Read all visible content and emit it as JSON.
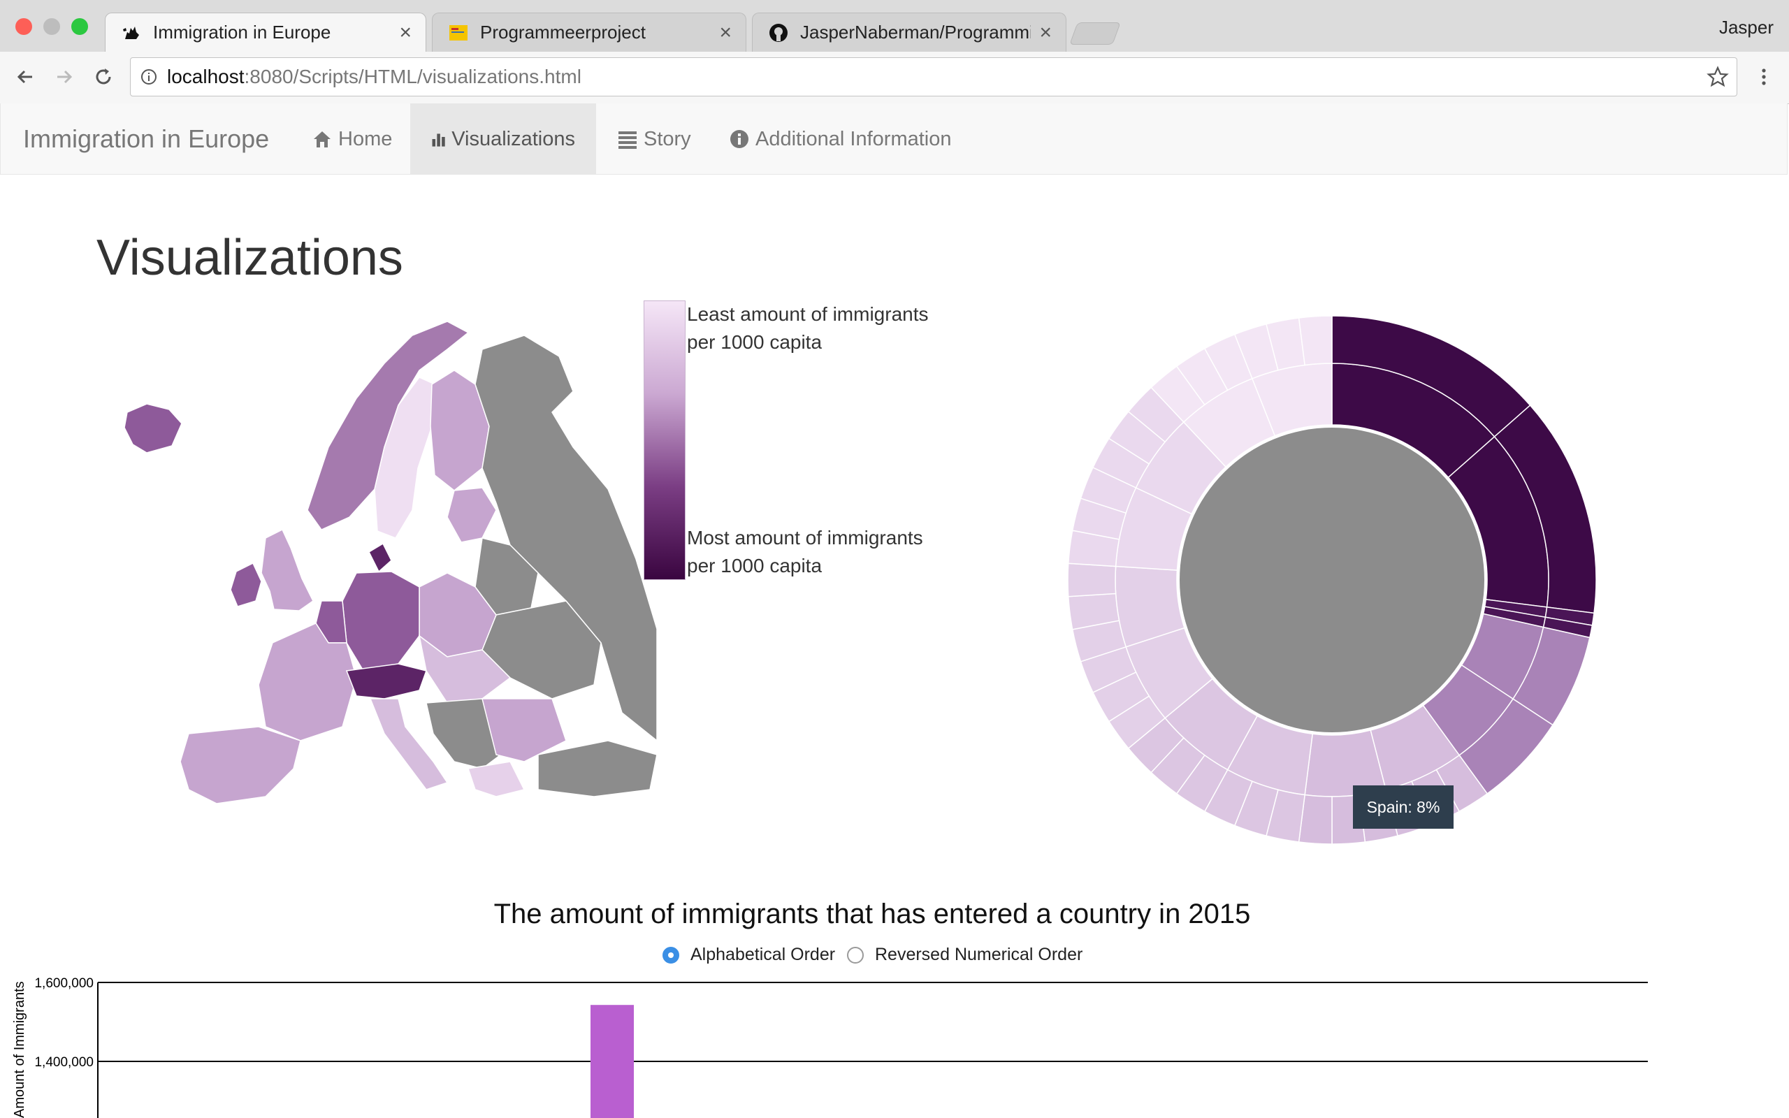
{
  "browser": {
    "tabs": [
      {
        "label": "Immigration in Europe",
        "active": true
      },
      {
        "label": "Programmeerproject",
        "active": false
      },
      {
        "label": "JasperNaberman/Programming",
        "active": false
      }
    ],
    "profile": "Jasper",
    "url_host": "localhost",
    "url_rest": ":8080/Scripts/HTML/visualizations.html",
    "icons": [
      "back-arrow-icon",
      "forward-arrow-icon",
      "reload-icon",
      "info-icon",
      "star-icon",
      "menu-dots-icon"
    ]
  },
  "navbar": {
    "brand": "Immigration in Europe",
    "links": [
      {
        "label": "Home",
        "icon": "home-icon"
      },
      {
        "label": "Visualizations",
        "icon": "bar-chart-icon",
        "active": true
      },
      {
        "label": "Story",
        "icon": "list-icon"
      },
      {
        "label": "Additional Information",
        "icon": "info-circle-icon"
      }
    ]
  },
  "main": {
    "title": "Visualizations",
    "legend": {
      "least_line1": "Least amount of immigrants",
      "least_line2": "per 1000 capita",
      "most_line1": "Most amount of immigrants",
      "most_line2": "per 1000 capita",
      "color_low": "#f5e6f7",
      "color_high": "#3a0540"
    },
    "tooltip": "Spain: 8%",
    "bar_chart_title": "The amount of immigrants that has entered a country in 2015",
    "sort_options": {
      "alphabetical": "Alphabetical Order",
      "reversed": "Reversed Numerical Order",
      "selected": "alphabetical"
    }
  },
  "colors": {
    "no_data": "#8c8c8c",
    "bar": "#b95fd0",
    "accent_radio": "#3b8fe5"
  },
  "chart_data": {
    "type": "bar",
    "title": "The amount of immigrants that has entered a country in 2015",
    "xlabel": "",
    "ylabel": "Amount of Immigrants",
    "ylim": [
      1200000,
      1600000
    ],
    "yticks": [
      1400000,
      1600000
    ],
    "ytick_labels": [
      "1,400,000",
      "1,600,000"
    ],
    "grid": true,
    "visible_bars": [
      {
        "value": 1543000,
        "label": ""
      }
    ]
  }
}
